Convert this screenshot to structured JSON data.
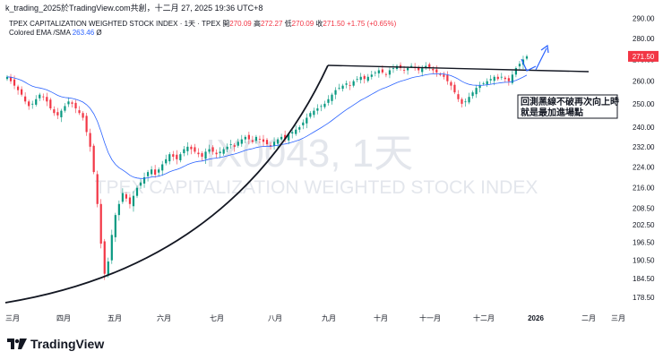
{
  "header": {
    "top_line": "k_trading_2025於TradingView.com共創，十二月 27, 2025 19:36 UTC+8"
  },
  "legend": {
    "symbol_name": "TPEX CAPITALIZATION WEIGHTED STOCK INDEX · 1天 · TPEX",
    "open_label": "開",
    "open": "270.09",
    "high_label": "高",
    "high": "272.27",
    "low_label": "低",
    "low": "270.09",
    "close_label": "收",
    "close": "271.50",
    "change": "+1.75 (+0.65%)",
    "ema_label": "Colored EMA /SMA",
    "ema_value": "263.46",
    "ema_suffix": "Ø"
  },
  "watermark": {
    "symbol": "IX0043, 1天",
    "name": "TPEX CAPITALIZATION WEIGHTED STOCK INDEX"
  },
  "annotation": {
    "line1": "回測黑線不破再次向上時",
    "line2": "就是最加進場點"
  },
  "footer": {
    "brand": "TradingView"
  },
  "colors": {
    "up": "#089981",
    "down": "#f23645",
    "ema": "#2962ff",
    "price_tag": "#f23645"
  },
  "chart_data": {
    "type": "candlestick",
    "y_axis_ticks": [
      290.0,
      280.0,
      270.0,
      260.0,
      250.0,
      240.0,
      232.0,
      224.0,
      216.0,
      208.5,
      202.5,
      196.5,
      190.5,
      184.5,
      178.5
    ],
    "y_axis_labels": [
      "290.00",
      "280.00",
      "270.00",
      "260.00",
      "250.00",
      "240.00",
      "232.00",
      "224.00",
      "216.00",
      "208.50",
      "202.50",
      "196.50",
      "190.50",
      "184.50",
      "178.50"
    ],
    "ylim": [
      175.5,
      293
    ],
    "log_scale": true,
    "current_price": 271.5,
    "current_price_label": "271.50",
    "x_axis_labels": [
      "三月",
      "四月",
      "五月",
      "六月",
      "七月",
      "八月",
      "九月",
      "十月",
      "十一月",
      "十二月",
      "2026",
      "二月",
      "三月"
    ],
    "closes": [
      262,
      260,
      258,
      256,
      254,
      251,
      249,
      250,
      252,
      254,
      253,
      251,
      248,
      246,
      245,
      247,
      249,
      251,
      250,
      248,
      246,
      244,
      238,
      232,
      222,
      210,
      196,
      186,
      190,
      199,
      206,
      210,
      214,
      212,
      210,
      213,
      216,
      218,
      220,
      222,
      223,
      221,
      223,
      225,
      227,
      229,
      228,
      227,
      229,
      231,
      232,
      231,
      230,
      229,
      228,
      230,
      231,
      230,
      229,
      230,
      231,
      232,
      233,
      232,
      234,
      235,
      236,
      235,
      234,
      236,
      235,
      234,
      233,
      232,
      234,
      235,
      236,
      235,
      237,
      238,
      239,
      240,
      242,
      244,
      246,
      247,
      248,
      249,
      250,
      252,
      254,
      256,
      257,
      258,
      259,
      258,
      260,
      261,
      262,
      261,
      262,
      263,
      264,
      265,
      264,
      263,
      265,
      266,
      267,
      266,
      265,
      266,
      267,
      266,
      265,
      266,
      267,
      266,
      265,
      264,
      263,
      262,
      260,
      258,
      255,
      252,
      250,
      251,
      253,
      255,
      257,
      258,
      259,
      260,
      261,
      262,
      261,
      262,
      261,
      260,
      263,
      266,
      268,
      270,
      271.5
    ]
  }
}
